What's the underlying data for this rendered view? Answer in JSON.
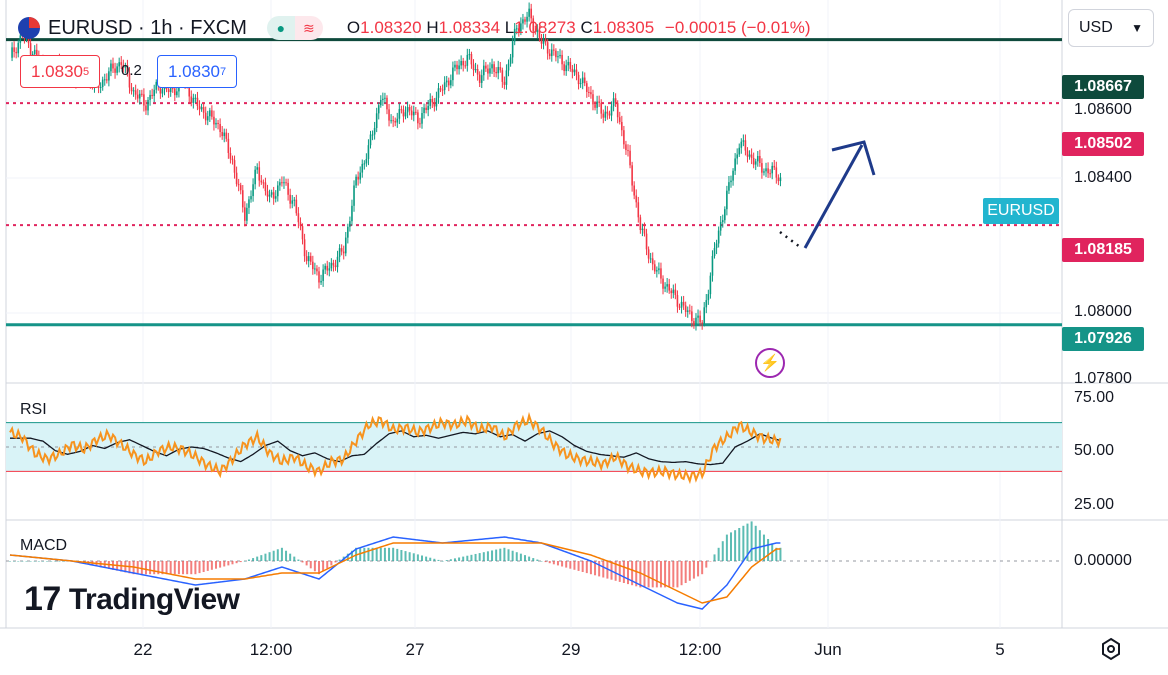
{
  "header": {
    "symbol_title": "EURUSD · 1h · FXCM",
    "open_label": "O",
    "open_value": "1.08320",
    "high_label": "H",
    "high_value": "1.08334",
    "low_label": "L",
    "low_value": "1.08273",
    "close_label": "C",
    "close_value": "1.08305",
    "change": "−0.00015 (−0.01%)",
    "bid_main": "1.0830",
    "bid_sup": "5",
    "spread": "0.2",
    "ask_main": "1.0830",
    "ask_sup": "7",
    "currency": "USD"
  },
  "colors": {
    "up": "#089981",
    "down": "#f23645",
    "resistance_line": "#0e4a3c",
    "support_line": "#159488",
    "dotted_line": "#e0245e",
    "arrow": "#1e3a8a",
    "rsi": "#f7931e",
    "rsi_ma": "#131722",
    "rsi_band": "#d9f3f7",
    "macd": "#2962ff",
    "signal": "#f57c00"
  },
  "price_levels": {
    "resistance": "1.08667",
    "upper_dotted": "1.08502",
    "lower_dotted": "1.08185",
    "support": "1.07926",
    "axis_ticks": [
      "1.08600",
      "1.08400",
      "1.08000",
      "1.07800"
    ],
    "symbol_tag": "EURUSD"
  },
  "rsi": {
    "label": "RSI",
    "ticks": [
      "75.00",
      "50.00",
      "25.00"
    ]
  },
  "macd": {
    "label": "MACD",
    "ticks": [
      "0.00000"
    ]
  },
  "time_axis": [
    "22",
    "12:00",
    "27",
    "29",
    "12:00",
    "Jun",
    "5"
  ],
  "brand": "TradingView",
  "chart_data": {
    "type": "candlestick",
    "title": "EURUSD · 1h · FXCM",
    "ylim": [
      1.0778,
      1.0877
    ],
    "levels": [
      1.08667,
      1.08502,
      1.08185,
      1.07926
    ],
    "close_path": [
      [
        0,
        1.0862
      ],
      [
        6,
        1.0868
      ],
      [
        12,
        1.0863
      ],
      [
        18,
        1.0858
      ],
      [
        24,
        1.0861
      ],
      [
        30,
        1.0856
      ],
      [
        36,
        1.0859
      ],
      [
        42,
        1.0854
      ],
      [
        48,
        1.0858
      ],
      [
        54,
        1.0861
      ],
      [
        60,
        1.0853
      ],
      [
        66,
        1.085
      ],
      [
        72,
        1.0855
      ],
      [
        78,
        1.0853
      ],
      [
        84,
        1.0856
      ],
      [
        90,
        1.085
      ],
      [
        96,
        1.0847
      ],
      [
        102,
        1.0844
      ],
      [
        108,
        1.0835
      ],
      [
        114,
        1.0821
      ],
      [
        120,
        1.0833
      ],
      [
        126,
        1.0825
      ],
      [
        132,
        1.083
      ],
      [
        138,
        1.0824
      ],
      [
        144,
        1.081
      ],
      [
        150,
        1.0805
      ],
      [
        156,
        1.0808
      ],
      [
        162,
        1.0812
      ],
      [
        168,
        1.083
      ],
      [
        174,
        1.0838
      ],
      [
        180,
        1.0852
      ],
      [
        186,
        1.0845
      ],
      [
        192,
        1.0849
      ],
      [
        198,
        1.0846
      ],
      [
        204,
        1.085
      ],
      [
        210,
        1.0854
      ],
      [
        216,
        1.0859
      ],
      [
        222,
        1.0862
      ],
      [
        228,
        1.0857
      ],
      [
        234,
        1.086
      ],
      [
        240,
        1.0856
      ],
      [
        246,
        1.087
      ],
      [
        252,
        1.0873
      ],
      [
        258,
        1.0866
      ],
      [
        264,
        1.0863
      ],
      [
        270,
        1.086
      ],
      [
        276,
        1.0857
      ],
      [
        282,
        1.0852
      ],
      [
        288,
        1.0847
      ],
      [
        294,
        1.085
      ],
      [
        300,
        1.0836
      ],
      [
        306,
        1.0818
      ],
      [
        312,
        1.0808
      ],
      [
        318,
        1.0803
      ],
      [
        324,
        1.0799
      ],
      [
        330,
        1.0795
      ],
      [
        336,
        1.0793
      ],
      [
        342,
        1.0812
      ],
      [
        348,
        1.0826
      ],
      [
        354,
        1.084
      ],
      [
        360,
        1.0836
      ],
      [
        366,
        1.0833
      ],
      [
        372,
        1.0832
      ],
      [
        374,
        1.08305
      ]
    ],
    "rsi_series": [
      [
        0,
        62
      ],
      [
        6,
        58
      ],
      [
        12,
        45
      ],
      [
        18,
        40
      ],
      [
        24,
        44
      ],
      [
        30,
        52
      ],
      [
        36,
        48
      ],
      [
        42,
        56
      ],
      [
        48,
        60
      ],
      [
        54,
        52
      ],
      [
        60,
        44
      ],
      [
        66,
        38
      ],
      [
        72,
        47
      ],
      [
        78,
        50
      ],
      [
        84,
        48
      ],
      [
        90,
        42
      ],
      [
        96,
        35
      ],
      [
        102,
        30
      ],
      [
        108,
        40
      ],
      [
        114,
        52
      ],
      [
        120,
        58
      ],
      [
        126,
        45
      ],
      [
        132,
        38
      ],
      [
        138,
        42
      ],
      [
        144,
        34
      ],
      [
        150,
        30
      ],
      [
        156,
        38
      ],
      [
        162,
        40
      ],
      [
        168,
        55
      ],
      [
        174,
        68
      ],
      [
        180,
        72
      ],
      [
        186,
        64
      ],
      [
        192,
        66
      ],
      [
        198,
        62
      ],
      [
        204,
        66
      ],
      [
        210,
        70
      ],
      [
        216,
        68
      ],
      [
        222,
        72
      ],
      [
        228,
        64
      ],
      [
        234,
        67
      ],
      [
        240,
        58
      ],
      [
        246,
        68
      ],
      [
        252,
        72
      ],
      [
        258,
        64
      ],
      [
        264,
        52
      ],
      [
        270,
        44
      ],
      [
        276,
        40
      ],
      [
        282,
        38
      ],
      [
        288,
        36
      ],
      [
        294,
        42
      ],
      [
        300,
        34
      ],
      [
        306,
        30
      ],
      [
        312,
        29
      ],
      [
        318,
        30
      ],
      [
        324,
        27
      ],
      [
        330,
        26
      ],
      [
        336,
        28
      ],
      [
        342,
        50
      ],
      [
        348,
        58
      ],
      [
        354,
        68
      ],
      [
        360,
        62
      ],
      [
        366,
        57
      ],
      [
        372,
        55
      ]
    ],
    "macd_series": [
      [
        0,
        0.0001
      ],
      [
        30,
        0.0
      ],
      [
        60,
        -0.0002
      ],
      [
        90,
        -0.0004
      ],
      [
        114,
        -0.0003
      ],
      [
        132,
        -0.0001
      ],
      [
        150,
        -0.0003
      ],
      [
        168,
        0.0002
      ],
      [
        186,
        0.0004
      ],
      [
        210,
        0.0003
      ],
      [
        240,
        0.0004
      ],
      [
        258,
        0.0003
      ],
      [
        282,
        0.0
      ],
      [
        306,
        -0.0004
      ],
      [
        324,
        -0.0007
      ],
      [
        336,
        -0.0008
      ],
      [
        348,
        -0.0004
      ],
      [
        360,
        0.0002
      ],
      [
        372,
        0.0003
      ]
    ],
    "signal_series": [
      [
        0,
        0.0001
      ],
      [
        30,
        0.0
      ],
      [
        60,
        -0.0001
      ],
      [
        90,
        -0.0003
      ],
      [
        114,
        -0.0003
      ],
      [
        132,
        -0.0002
      ],
      [
        150,
        -0.0002
      ],
      [
        168,
        0.0001
      ],
      [
        186,
        0.0003
      ],
      [
        210,
        0.0003
      ],
      [
        240,
        0.0003
      ],
      [
        258,
        0.0003
      ],
      [
        282,
        0.0001
      ],
      [
        306,
        -0.0002
      ],
      [
        324,
        -0.0005
      ],
      [
        336,
        -0.0007
      ],
      [
        348,
        -0.0006
      ],
      [
        360,
        -0.0001
      ],
      [
        372,
        0.0002
      ]
    ]
  }
}
